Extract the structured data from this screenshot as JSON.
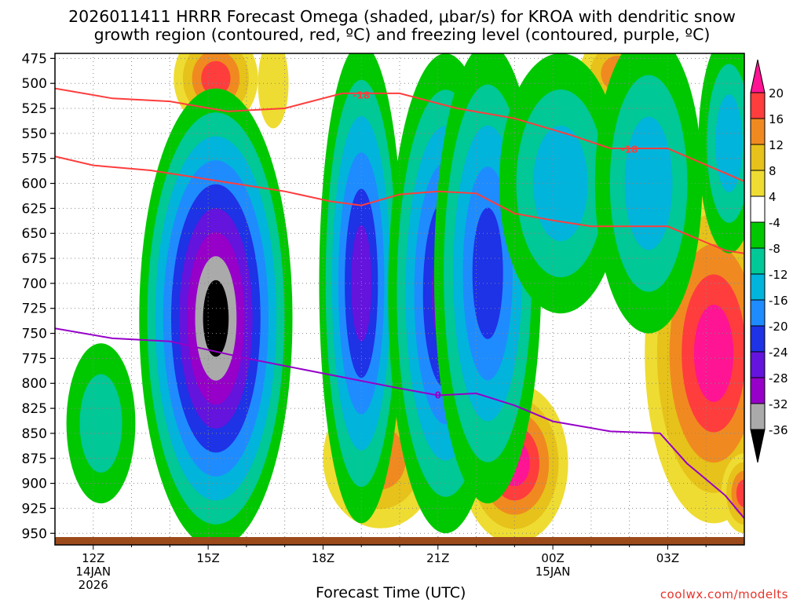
{
  "title_line1": "2026011411 HRRR Forecast Omega (shaded, μbar/s) for KROA with dendritic snow",
  "title_line2": "growth region (contoured, red, ºC) and freezing level (contoured, purple, ºC)",
  "xlabel": "Forecast Time (UTC)",
  "credit": "coolwx.com/modelts",
  "chart_data": {
    "type": "heatmap",
    "title": "2026011411 HRRR Forecast Omega (shaded, μbar/s) for KROA with dendritic snow growth region (contoured, red, ºC) and freezing level (contoured, purple, ºC)",
    "xlabel": "Forecast Time (UTC)",
    "ylabel": "",
    "x_range_hours_from_12Z": [
      -1,
      17
    ],
    "y_range_hPa": [
      960,
      470
    ],
    "y_ticks": [
      475,
      500,
      525,
      550,
      575,
      600,
      625,
      650,
      675,
      700,
      725,
      750,
      775,
      800,
      825,
      850,
      875,
      900,
      925,
      950
    ],
    "x_ticks": [
      {
        "h": 0,
        "label": "12Z",
        "sub1": "14JAN",
        "sub2": "2026"
      },
      {
        "h": 3,
        "label": "15Z",
        "sub1": "",
        "sub2": ""
      },
      {
        "h": 6,
        "label": "18Z",
        "sub1": "",
        "sub2": ""
      },
      {
        "h": 9,
        "label": "21Z",
        "sub1": "",
        "sub2": ""
      },
      {
        "h": 12,
        "label": "00Z",
        "sub1": "15JAN",
        "sub2": ""
      },
      {
        "h": 15,
        "label": "03Z",
        "sub1": "",
        "sub2": ""
      }
    ],
    "grid": true,
    "colorbar": {
      "labels": [
        "20",
        "16",
        "12",
        "8",
        "4",
        "-4",
        "-8",
        "-12",
        "-16",
        "-20",
        "-24",
        "-28",
        "-32",
        "-36"
      ],
      "colors": [
        "#ff1493",
        "#ff3d3d",
        "#f08a20",
        "#e6c21a",
        "#eedc32",
        "#ffffff",
        "#00c800",
        "#00c896",
        "#00b4dc",
        "#1e8cff",
        "#1e32e6",
        "#6414dc",
        "#9600c8",
        "#aaaaaa",
        "#000000"
      ]
    },
    "omega_features": [
      {
        "h": 3.2,
        "p": 740,
        "peak": -40,
        "name": "strong ascent core"
      },
      {
        "h": 6.9,
        "p": 690,
        "peak": -30
      },
      {
        "h": 8.9,
        "p": 655,
        "peak": -27
      },
      {
        "h": 10.2,
        "p": 660,
        "peak": -22
      },
      {
        "h": 7.5,
        "p": 870,
        "peak": 12
      },
      {
        "h": 11.0,
        "p": 880,
        "peak": 20
      },
      {
        "h": 16.3,
        "p": 740,
        "peak": 22
      },
      {
        "h": 3.0,
        "p": 485,
        "peak": 16
      },
      {
        "h": 13.7,
        "p": 490,
        "peak": 13
      }
    ],
    "dgz_top_-18C": [
      {
        "h": -1.0,
        "p": 505
      },
      {
        "h": 0.5,
        "p": 515
      },
      {
        "h": 2.0,
        "p": 518
      },
      {
        "h": 3.5,
        "p": 528
      },
      {
        "h": 5.0,
        "p": 525
      },
      {
        "h": 6.5,
        "p": 510
      },
      {
        "h": 8.0,
        "p": 510
      },
      {
        "h": 9.5,
        "p": 525
      },
      {
        "h": 11.0,
        "p": 535
      },
      {
        "h": 12.5,
        "p": 552
      },
      {
        "h": 13.5,
        "p": 565
      },
      {
        "h": 15.0,
        "p": 565
      },
      {
        "h": 17.0,
        "p": 598
      }
    ],
    "dgz_bottom_-12C": [
      {
        "h": -1.0,
        "p": 573
      },
      {
        "h": 0.0,
        "p": 582
      },
      {
        "h": 1.5,
        "p": 587
      },
      {
        "h": 3.0,
        "p": 596
      },
      {
        "h": 5.0,
        "p": 608
      },
      {
        "h": 6.2,
        "p": 618
      },
      {
        "h": 7.0,
        "p": 622
      },
      {
        "h": 8.0,
        "p": 611
      },
      {
        "h": 9.0,
        "p": 608
      },
      {
        "h": 10.0,
        "p": 610
      },
      {
        "h": 11.0,
        "p": 630
      },
      {
        "h": 12.0,
        "p": 637
      },
      {
        "h": 13.0,
        "p": 643
      },
      {
        "h": 15.0,
        "p": 643
      },
      {
        "h": 16.5,
        "p": 667
      },
      {
        "h": 17.0,
        "p": 670
      }
    ],
    "freezing_level_0C": [
      {
        "h": -1.0,
        "p": 745
      },
      {
        "h": 0.5,
        "p": 755
      },
      {
        "h": 2.0,
        "p": 758
      },
      {
        "h": 4.0,
        "p": 775
      },
      {
        "h": 6.0,
        "p": 790
      },
      {
        "h": 8.0,
        "p": 805
      },
      {
        "h": 9.0,
        "p": 812
      },
      {
        "h": 10.0,
        "p": 810
      },
      {
        "h": 11.0,
        "p": 822
      },
      {
        "h": 12.0,
        "p": 838
      },
      {
        "h": 13.5,
        "p": 848
      },
      {
        "h": 14.8,
        "p": 850
      },
      {
        "h": 15.5,
        "p": 880
      },
      {
        "h": 16.5,
        "p": 912
      },
      {
        "h": 17.0,
        "p": 935
      }
    ],
    "contour_labels": [
      {
        "text": "-18",
        "h": 7.0,
        "p": 512,
        "color": "#ff3d3d"
      },
      {
        "text": "-18",
        "h": 14.0,
        "p": 566,
        "color": "#ff3d3d"
      },
      {
        "text": "0",
        "h": 9.0,
        "p": 812,
        "color": "#9600c8"
      }
    ]
  }
}
